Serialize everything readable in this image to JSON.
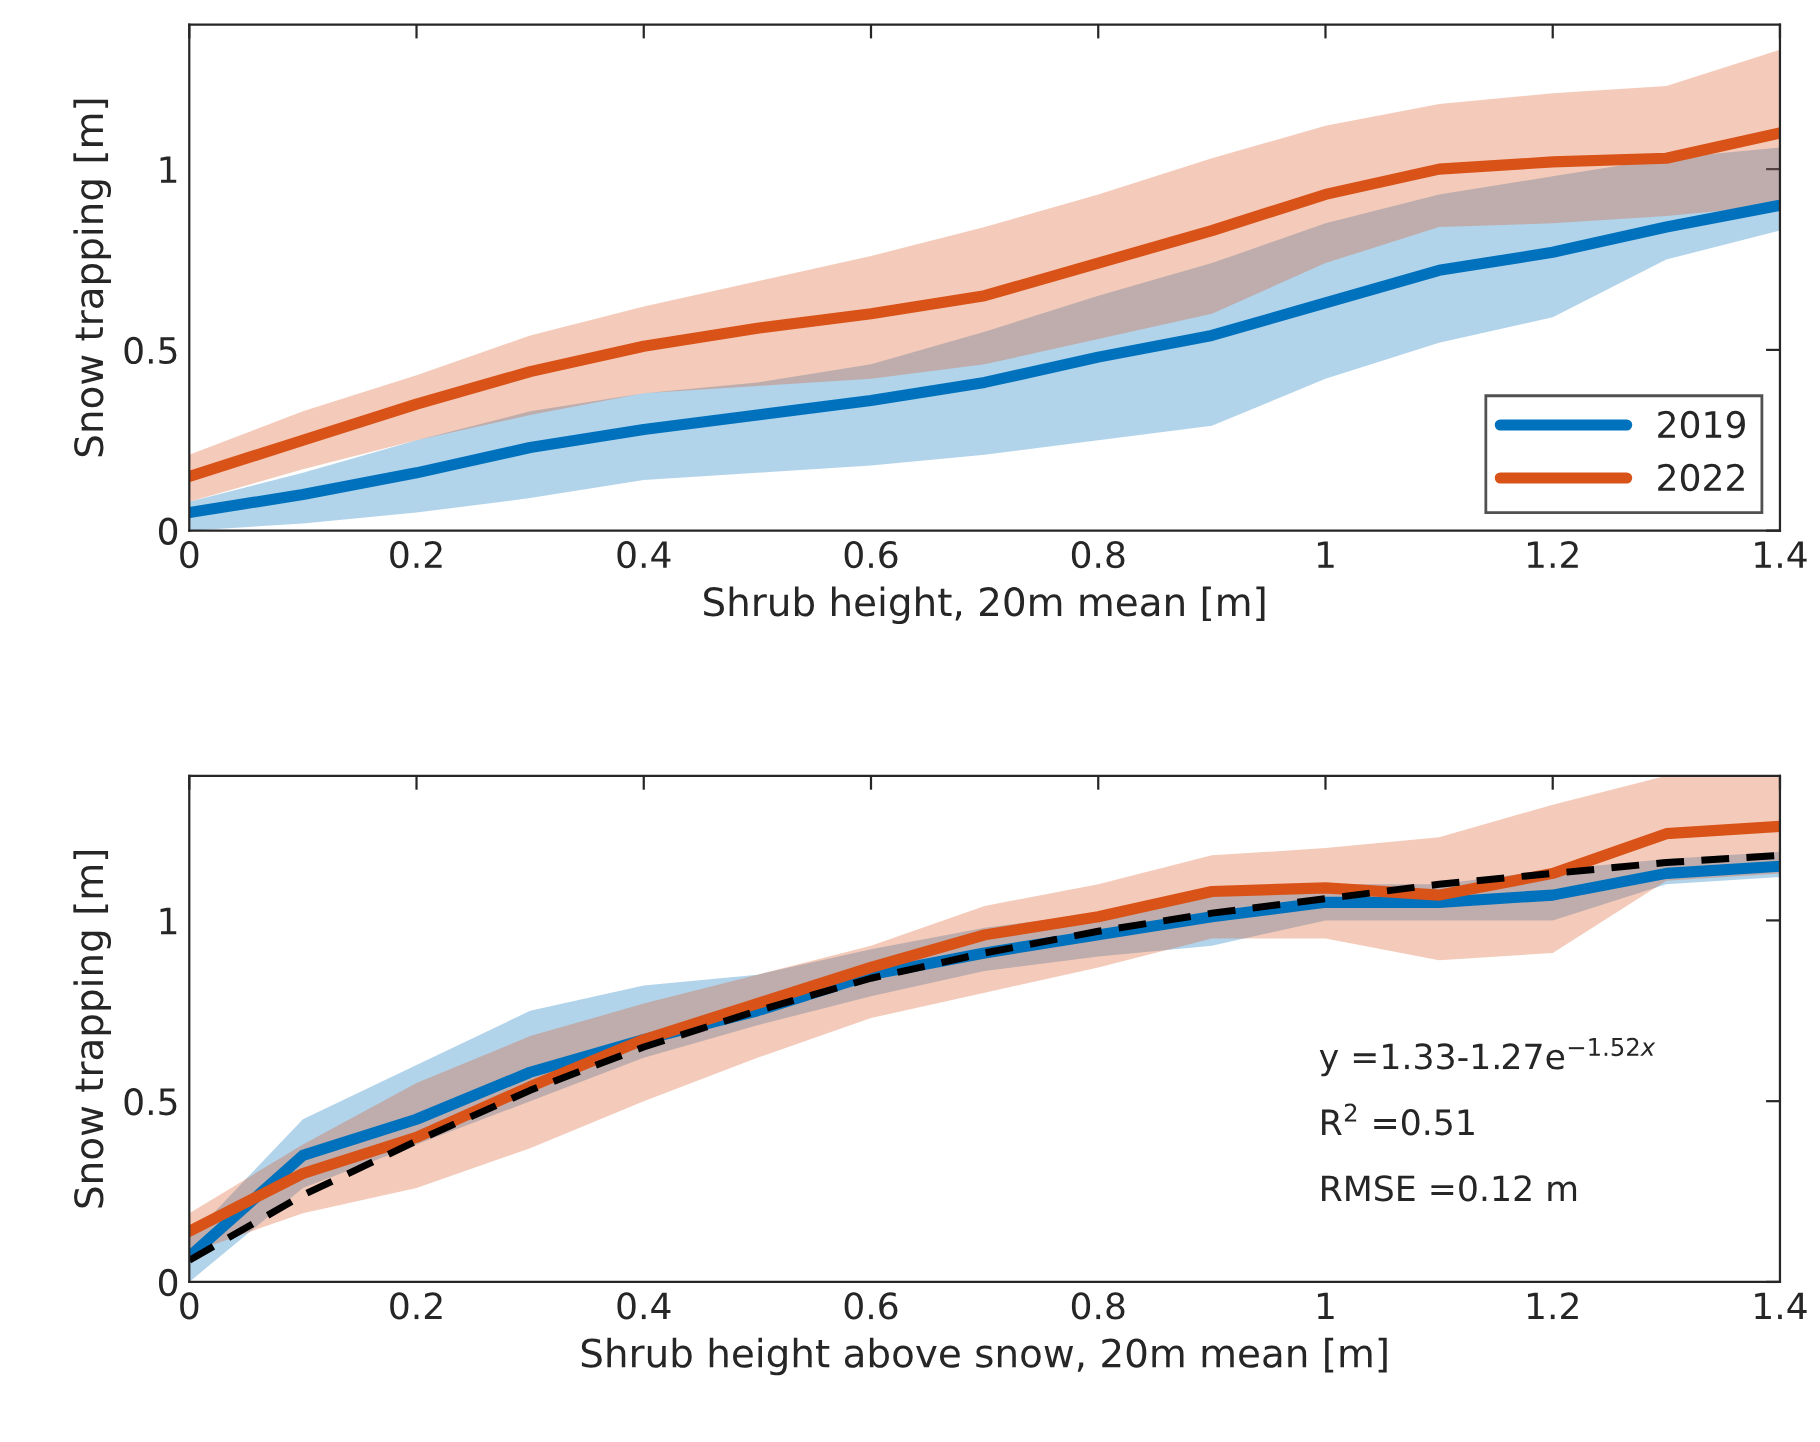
{
  "chart_data": [
    {
      "type": "line",
      "xlabel": "Shrub height, 20m mean [m]",
      "ylabel": "Snow trapping [m]",
      "xlim": [
        0,
        1.4
      ],
      "ylim": [
        0,
        1.4
      ],
      "xticks": [
        0,
        0.2,
        0.4,
        0.6,
        0.8,
        1,
        1.2,
        1.4
      ],
      "yticks": [
        0,
        0.5,
        1
      ],
      "grid": false,
      "legend": "bottom right",
      "x": [
        0,
        0.1,
        0.2,
        0.3,
        0.4,
        0.5,
        0.6,
        0.7,
        0.8,
        0.9,
        1.0,
        1.1,
        1.2,
        1.3,
        1.4
      ],
      "series": [
        {
          "name": "2019",
          "color": "#0072bd",
          "values": [
            0.05,
            0.1,
            0.16,
            0.23,
            0.28,
            0.32,
            0.36,
            0.41,
            0.48,
            0.54,
            0.63,
            0.72,
            0.77,
            0.84,
            0.9
          ],
          "lower": [
            0.0,
            0.02,
            0.05,
            0.09,
            0.14,
            0.16,
            0.18,
            0.21,
            0.25,
            0.29,
            0.42,
            0.52,
            0.59,
            0.75,
            0.83
          ],
          "upper": [
            0.08,
            0.16,
            0.25,
            0.33,
            0.38,
            0.41,
            0.46,
            0.55,
            0.65,
            0.74,
            0.85,
            0.93,
            0.98,
            1.03,
            1.06
          ]
        },
        {
          "name": "2022",
          "color": "#d95319",
          "values": [
            0.15,
            0.25,
            0.35,
            0.44,
            0.51,
            0.56,
            0.6,
            0.65,
            0.74,
            0.83,
            0.93,
            1.0,
            1.02,
            1.03,
            1.1
          ],
          "lower": [
            0.08,
            0.17,
            0.25,
            0.32,
            0.38,
            0.4,
            0.42,
            0.46,
            0.53,
            0.6,
            0.74,
            0.84,
            0.85,
            0.87,
            0.9
          ],
          "upper": [
            0.21,
            0.33,
            0.43,
            0.54,
            0.62,
            0.69,
            0.76,
            0.84,
            0.93,
            1.03,
            1.12,
            1.18,
            1.21,
            1.23,
            1.33
          ]
        }
      ]
    },
    {
      "type": "line",
      "xlabel": "Shrub height above snow, 20m mean [m]",
      "ylabel": "Snow trapping [m]",
      "xlim": [
        0,
        1.4
      ],
      "ylim": [
        0,
        1.4
      ],
      "xticks": [
        0,
        0.2,
        0.4,
        0.6,
        0.8,
        1,
        1.2,
        1.4
      ],
      "yticks": [
        0,
        0.5,
        1
      ],
      "grid": false,
      "x": [
        0,
        0.1,
        0.2,
        0.3,
        0.4,
        0.5,
        0.6,
        0.7,
        0.8,
        0.9,
        1.0,
        1.1,
        1.2,
        1.3,
        1.4
      ],
      "annotations": [
        "y =1.33-1.27e$^{−1.52x}$",
        "R$^{2}$ =0.51",
        "RMSE =0.12 m"
      ],
      "series": [
        {
          "color": "#0072bd",
          "values": [
            0.07,
            0.35,
            0.45,
            0.58,
            0.67,
            0.75,
            0.85,
            0.91,
            0.96,
            1.01,
            1.05,
            1.05,
            1.07,
            1.13,
            1.15
          ],
          "lower": [
            0.0,
            0.26,
            0.38,
            0.5,
            0.62,
            0.71,
            0.79,
            0.86,
            0.9,
            0.93,
            1.0,
            1.0,
            1.0,
            1.1,
            1.12
          ],
          "upper": [
            0.12,
            0.45,
            0.6,
            0.75,
            0.82,
            0.85,
            0.92,
            0.98,
            1.02,
            1.08,
            1.1,
            1.1,
            1.14,
            1.17,
            1.19
          ]
        },
        {
          "color": "#d95319",
          "values": [
            0.14,
            0.3,
            0.4,
            0.54,
            0.67,
            0.77,
            0.87,
            0.96,
            1.01,
            1.08,
            1.09,
            1.07,
            1.13,
            1.24,
            1.26
          ],
          "lower": [
            0.08,
            0.19,
            0.26,
            0.37,
            0.5,
            0.62,
            0.73,
            0.8,
            0.87,
            0.95,
            0.95,
            0.89,
            0.91,
            1.11,
            1.13
          ],
          "upper": [
            0.19,
            0.38,
            0.55,
            0.68,
            0.77,
            0.85,
            0.93,
            1.04,
            1.1,
            1.18,
            1.2,
            1.23,
            1.32,
            1.4,
            1.4
          ]
        },
        {
          "color": "#000000",
          "line_style": "dashed",
          "values": [
            0.06,
            0.24,
            0.39,
            0.53,
            0.65,
            0.75,
            0.84,
            0.91,
            0.97,
            1.02,
            1.06,
            1.1,
            1.13,
            1.16,
            1.18
          ]
        }
      ]
    }
  ]
}
